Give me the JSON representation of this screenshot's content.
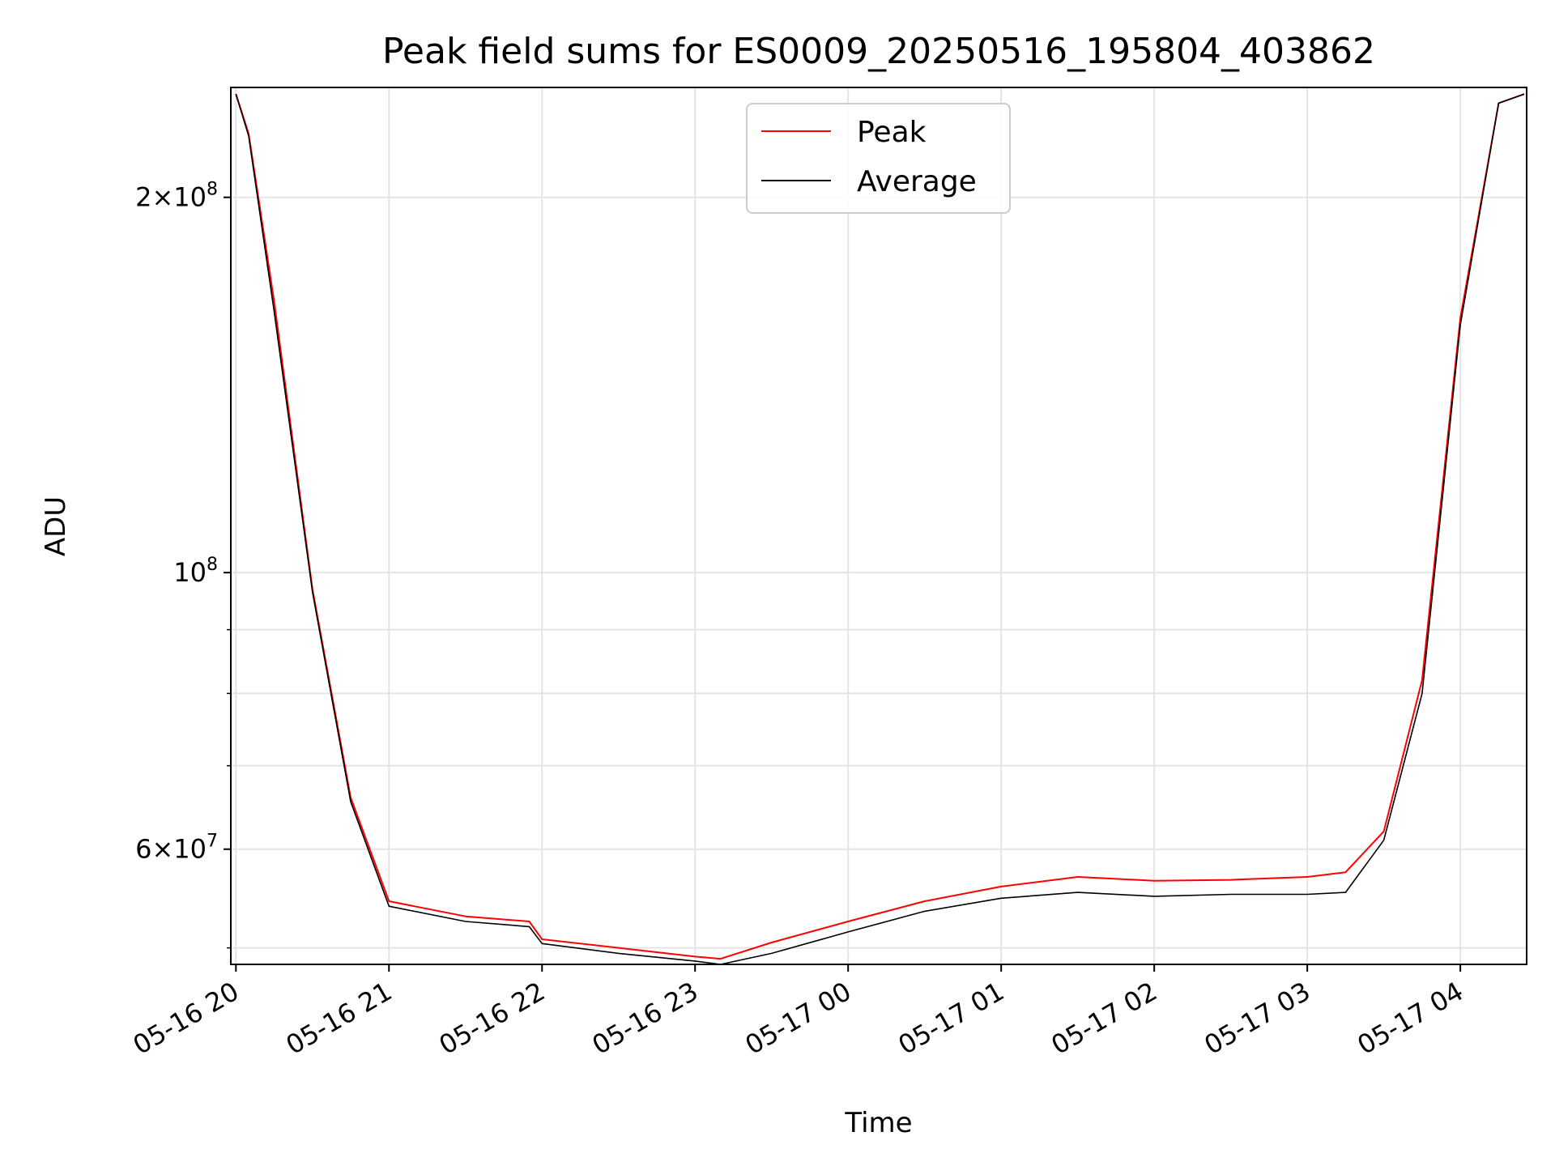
{
  "chart_data": {
    "type": "line",
    "title": "Peak field sums for ES0009_20250516_195804_403862",
    "xlabel": "Time",
    "ylabel": "ADU",
    "y_scale": "log",
    "xlim": [
      "2025-05-16 19:58",
      "2025-05-17 04:26"
    ],
    "ylim": [
      48500000,
      245000000
    ],
    "grid": true,
    "legend_position": "upper center",
    "x_ticks": [
      "05-16 20",
      "05-16 21",
      "05-16 22",
      "05-16 23",
      "05-17 00",
      "05-17 01",
      "05-17 02",
      "05-17 03",
      "05-17 04"
    ],
    "y_ticks": [
      {
        "value": 200000000,
        "mantissa": "2",
        "exponent": "8"
      },
      {
        "value": 100000000,
        "mantissa": "",
        "exponent": "8"
      },
      {
        "value": 60000000,
        "mantissa": "6",
        "exponent": "7"
      }
    ],
    "x": [
      "2025-05-16 20:00",
      "2025-05-16 20:05",
      "2025-05-16 20:15",
      "2025-05-16 20:30",
      "2025-05-16 20:45",
      "2025-05-16 21:00",
      "2025-05-16 21:30",
      "2025-05-16 21:55",
      "2025-05-16 22:00",
      "2025-05-16 22:30",
      "2025-05-16 23:00",
      "2025-05-16 23:10",
      "2025-05-16 23:30",
      "2025-05-17 00:00",
      "2025-05-17 00:30",
      "2025-05-17 01:00",
      "2025-05-17 01:30",
      "2025-05-17 02:00",
      "2025-05-17 02:30",
      "2025-05-17 03:00",
      "2025-05-17 03:15",
      "2025-05-17 03:30",
      "2025-05-17 03:45",
      "2025-05-17 04:00",
      "2025-05-17 04:15",
      "2025-05-17 04:25"
    ],
    "series": [
      {
        "name": "Peak",
        "color": "#ff0000",
        "values": [
          242000000,
          225000000,
          165000000,
          97000000,
          66000000,
          54500000,
          53000000,
          52500000,
          50800000,
          50000000,
          49200000,
          49000000,
          50500000,
          52500000,
          54500000,
          56000000,
          57000000,
          56600000,
          56700000,
          57000000,
          57500000,
          62000000,
          82000000,
          160000000,
          238000000,
          242000000
        ]
      },
      {
        "name": "Average",
        "color": "#000000",
        "values": [
          242000000,
          224000000,
          162000000,
          96500000,
          65500000,
          54000000,
          52500000,
          52000000,
          50400000,
          49500000,
          48800000,
          48500000,
          49500000,
          51500000,
          53500000,
          54800000,
          55400000,
          55000000,
          55200000,
          55200000,
          55400000,
          61000000,
          80000000,
          158000000,
          238000000,
          242000000
        ]
      }
    ]
  }
}
